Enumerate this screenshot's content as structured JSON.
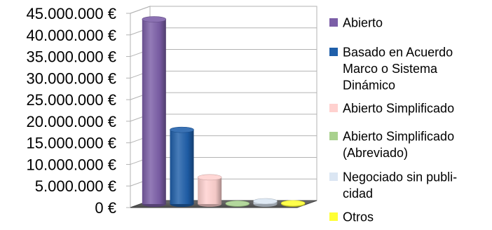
{
  "chart_data": {
    "type": "bar",
    "style": "3d-cylinder",
    "categories": [
      "Abierto",
      "Basado en Acuerdo Marco o Sistema Dinámico",
      "Abierto Simplificado",
      "Abierto Simplificado (Abreviado)",
      "Negociado sin publicidad",
      "Otros"
    ],
    "values": [
      42800000,
      17200000,
      6200000,
      120000,
      650000,
      200000
    ],
    "colors": [
      "#7b5ea7",
      "#1f5faa",
      "#ffd1cf",
      "#a9d18e",
      "#dbe6f3",
      "#ffff33"
    ],
    "yticks": [
      "0 €",
      "5.000.000 €",
      "10.000.000 €",
      "15.000.000 €",
      "20.000.000 €",
      "25.000.000 €",
      "30.000.000 €",
      "35.000.000 €",
      "40.000.000 €",
      "45.000.000 €"
    ],
    "ylim": [
      0,
      45000000
    ],
    "grid": true,
    "legend_position": "right",
    "legend": [
      {
        "lines": [
          "Abierto"
        ]
      },
      {
        "lines": [
          "Basado en Acuerdo",
          "Marco o Sistema",
          "Dinámico"
        ]
      },
      {
        "lines": [
          "Abierto Simplificado"
        ]
      },
      {
        "lines": [
          "Abierto Simplificado",
          "(Abreviado)"
        ]
      },
      {
        "lines": [
          "Negociado sin publi-",
          "cidad"
        ]
      },
      {
        "lines": [
          "Otros"
        ]
      }
    ]
  }
}
